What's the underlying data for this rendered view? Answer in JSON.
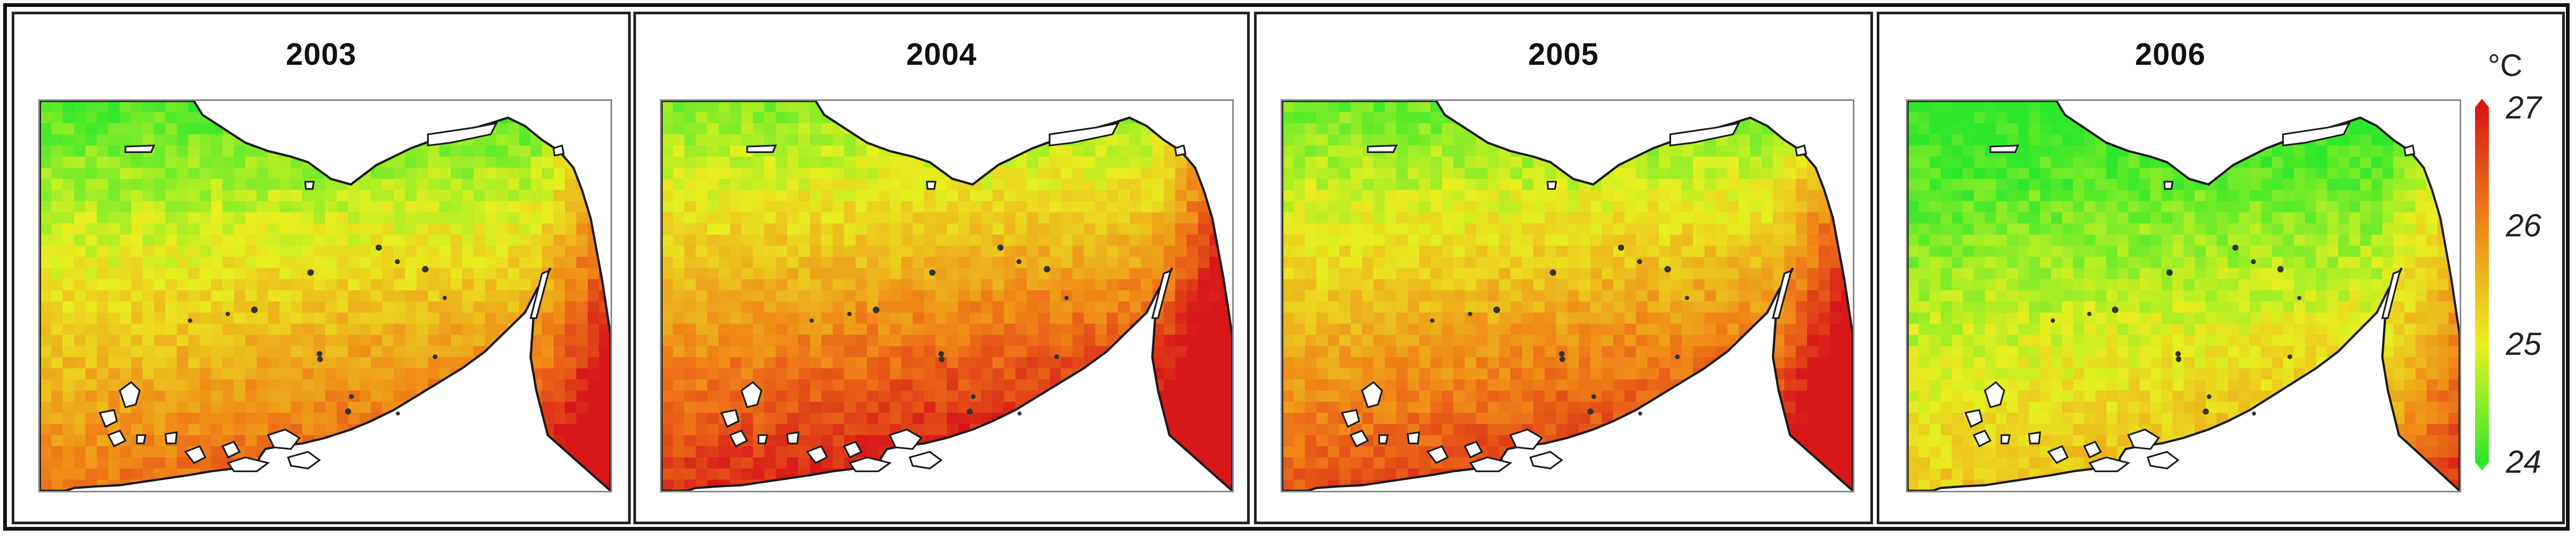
{
  "figure": {
    "panels": [
      {
        "year": "2003",
        "warmth": 0.55
      },
      {
        "year": "2004",
        "warmth": 0.8
      },
      {
        "year": "2005",
        "warmth": 0.68
      },
      {
        "year": "2006",
        "warmth": 0.28
      }
    ]
  },
  "legend": {
    "unit": "°C",
    "ticks": [
      "27",
      "26",
      "25",
      "24"
    ],
    "min": 24,
    "max": 27,
    "colors": [
      "#2ee82e",
      "#e8f020",
      "#f08a18",
      "#d81818"
    ]
  },
  "colors": {
    "coastline": "#1a1a1a",
    "cool": "#2ee82e",
    "mid": "#e8e020",
    "warm": "#e83a10"
  }
}
